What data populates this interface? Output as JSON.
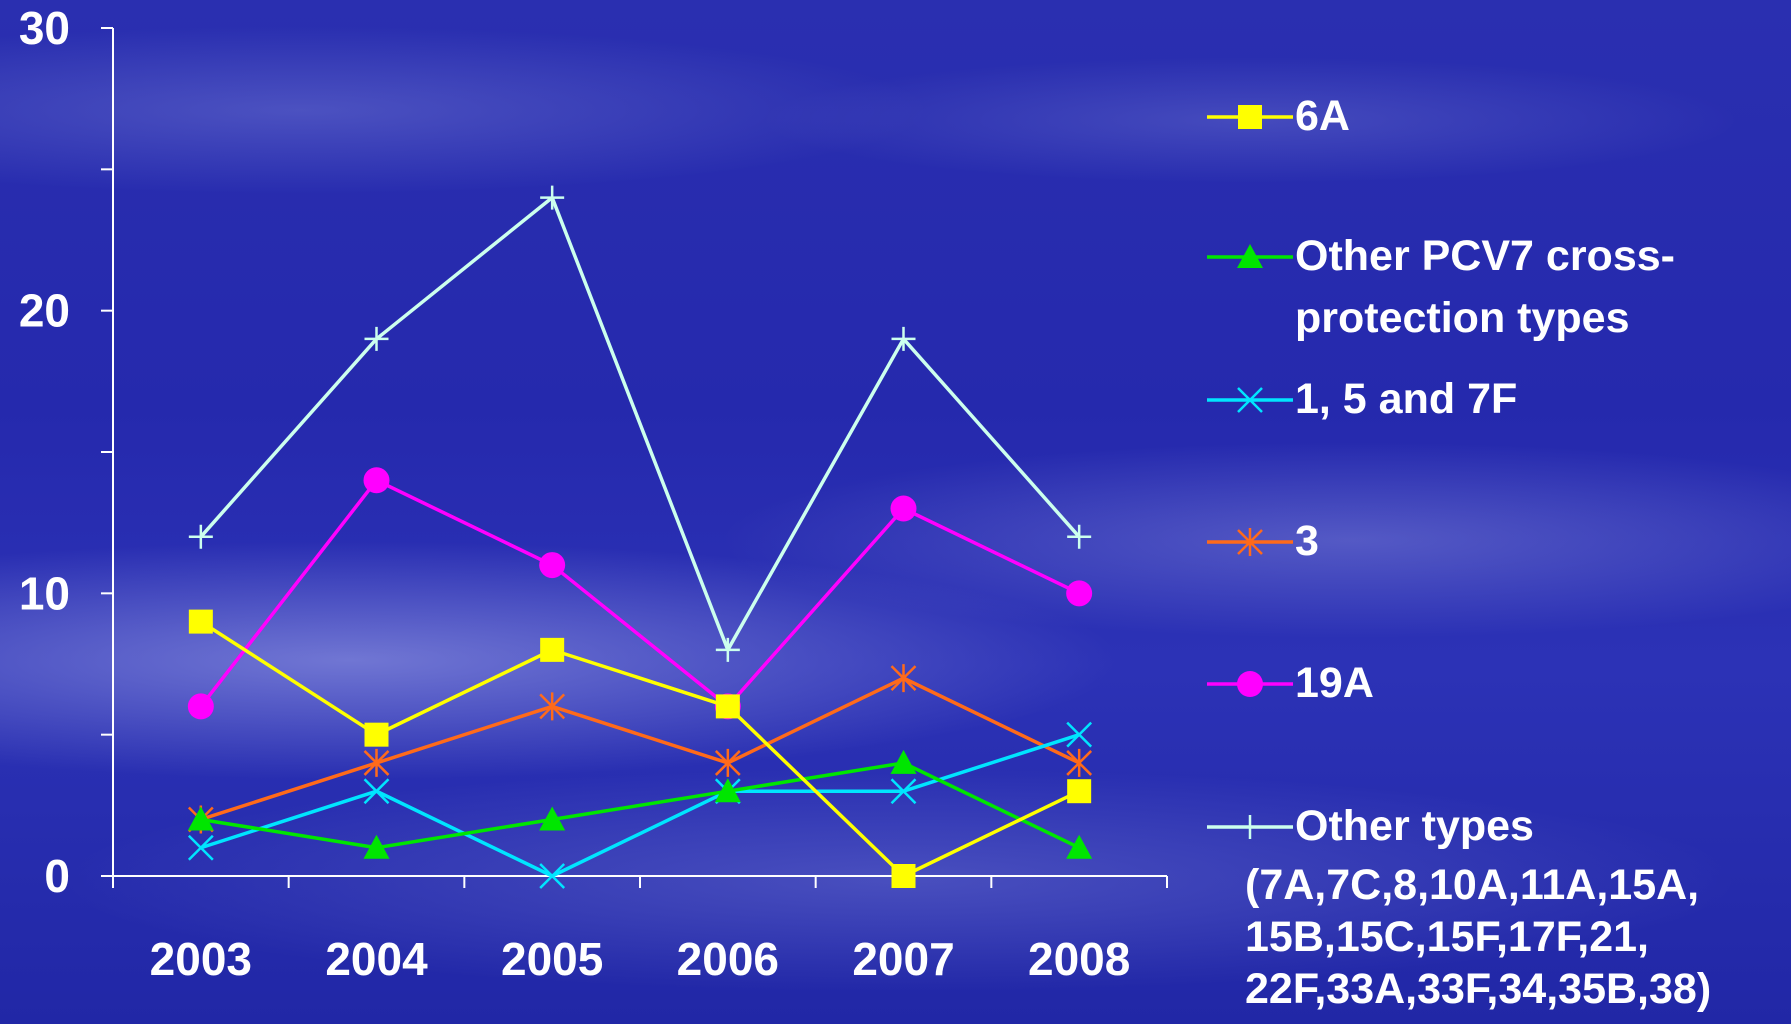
{
  "chart_data": {
    "type": "line",
    "title": "",
    "xlabel": "",
    "ylabel": "",
    "categories": [
      "2003",
      "2004",
      "2005",
      "2006",
      "2007",
      "2008"
    ],
    "ylim": [
      0,
      30
    ],
    "yticks": [
      "0",
      "10",
      "20",
      "30"
    ],
    "grid": false,
    "legend_position": "right",
    "series": [
      {
        "name": "6A",
        "values": [
          9,
          5,
          8,
          6,
          0,
          3
        ],
        "color": "#ffff00",
        "marker": "square"
      },
      {
        "name": "Other PCV7 cross-protection types",
        "values": [
          2,
          1,
          2,
          3,
          4,
          1
        ],
        "color": "#00e600",
        "marker": "triangle"
      },
      {
        "name": "1, 5 and 7F",
        "values": [
          1,
          3,
          0,
          3,
          3,
          5
        ],
        "color": "#00e5ff",
        "marker": "x"
      },
      {
        "name": "3",
        "values": [
          2,
          4,
          6,
          4,
          7,
          4
        ],
        "color": "#ff6a1a",
        "marker": "asterisk"
      },
      {
        "name": "19A",
        "values": [
          6,
          14,
          11,
          6,
          13,
          10
        ],
        "color": "#ff00ff",
        "marker": "circle"
      },
      {
        "name": "Other types",
        "values": [
          12,
          19,
          24,
          8,
          19,
          12
        ],
        "color": "#ccffee",
        "marker": "plus"
      }
    ]
  },
  "legend": {
    "items": [
      {
        "lines": [
          "6A"
        ]
      },
      {
        "lines": [
          "Other PCV7 cross-",
          "protection types"
        ]
      },
      {
        "lines": [
          "1, 5 and 7F"
        ]
      },
      {
        "lines": [
          "3"
        ]
      },
      {
        "lines": [
          "19A"
        ]
      },
      {
        "lines": [
          "Other types"
        ]
      }
    ],
    "other_types_detail": [
      "(7A,7C,8,10A,11A,15A,",
      "15B,15C,15F,17F,21,",
      "22F,33A,33F,34,35B,38)"
    ]
  }
}
